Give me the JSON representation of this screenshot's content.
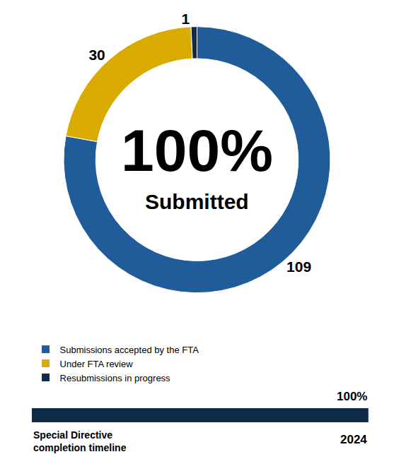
{
  "chart_data": [
    {
      "type": "donut",
      "categories": [
        "Submissions accepted by the FTA",
        "Under FTA review",
        "Resubmissions in progress"
      ],
      "values": [
        109,
        30,
        1
      ],
      "colors": [
        "#1f5c99",
        "#d9aa00",
        "#0f2a4a"
      ],
      "data_labels": true,
      "legend": "bottom",
      "annotations": [
        "100%",
        "Submitted"
      ]
    },
    {
      "type": "bar",
      "orientation": "horizontal",
      "categories": [
        "Special Directive completion timeline"
      ],
      "values": [
        100
      ],
      "value_labels": [
        "100%"
      ],
      "xlim": [
        0,
        100
      ],
      "color": "#0f2a4a",
      "data_labels": true,
      "tick_labels": false,
      "annotations": [
        "2024"
      ]
    }
  ]
}
